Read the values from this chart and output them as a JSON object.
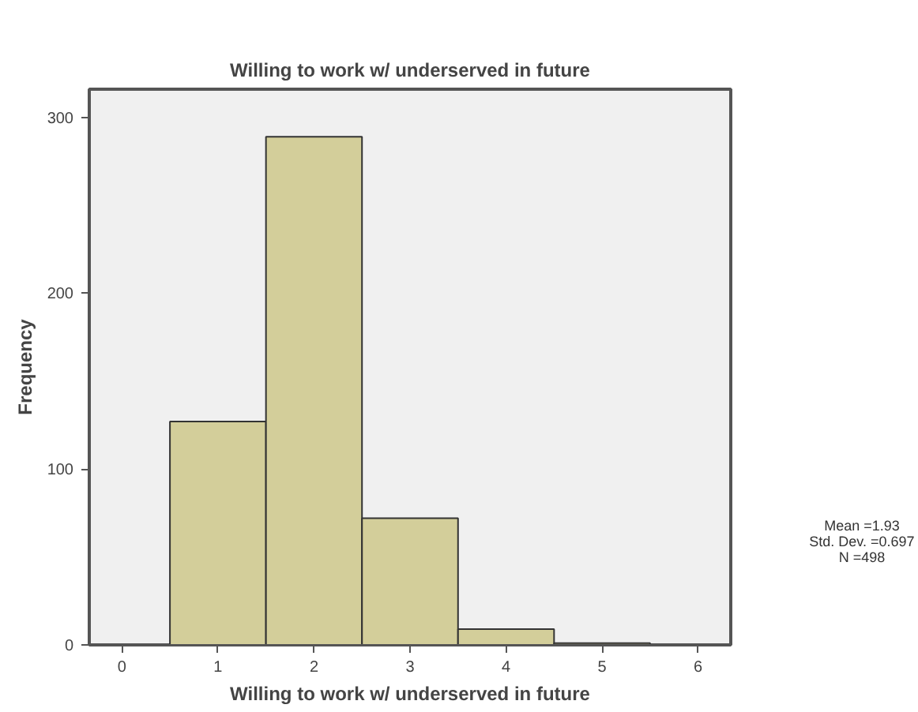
{
  "chart_data": {
    "type": "histogram",
    "title": "Willing to work w/ underserved in future",
    "xlabel": "Willing to work w/ underserved in future",
    "ylabel": "Frequency",
    "bins": [
      0.5,
      1.5,
      2.5,
      3.5,
      4.5,
      5.5
    ],
    "values": [
      127,
      289,
      72,
      9,
      1
    ],
    "color": "#d3ce9a",
    "xlim": [
      -0.34,
      6.34
    ],
    "xticks": [
      0,
      1,
      2,
      3,
      4,
      5,
      6
    ],
    "ylim": [
      0,
      316
    ],
    "yticks": [
      0,
      100,
      200,
      300
    ],
    "grid": false,
    "annotations": [
      "Mean =1.93",
      "Std. Dev. =0.697",
      "N =498"
    ]
  }
}
